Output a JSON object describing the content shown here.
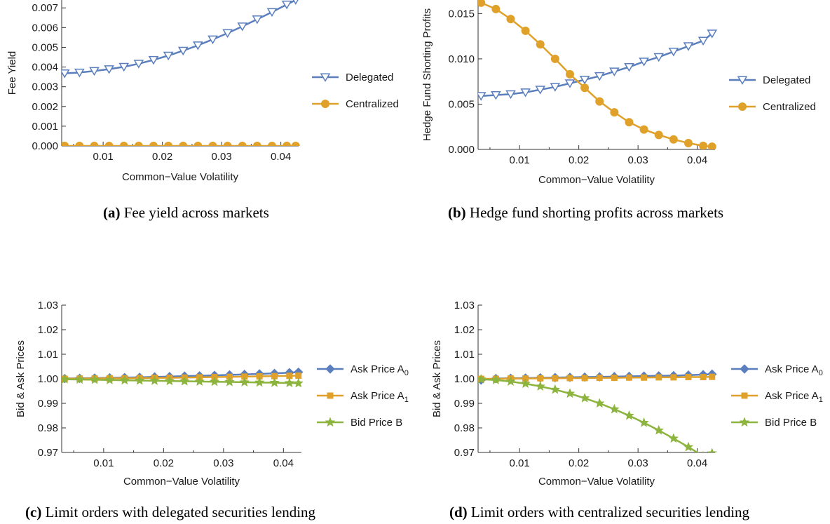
{
  "colors": {
    "delegated": "#5b7fbd",
    "centralized": "#e0a12a",
    "green": "#8cb43e",
    "axis": "#333333"
  },
  "chart_data": [
    {
      "id": "a",
      "type": "line",
      "caption_label": "(a)",
      "caption_text": " Fee yield across markets",
      "xlabel": "Common−Value Volatility",
      "ylabel": "Fee Yield",
      "xlim": [
        0.003,
        0.043
      ],
      "ylim": [
        0.0,
        0.0074
      ],
      "x_ticks": [
        0.01,
        0.02,
        0.03,
        0.04
      ],
      "x_tick_labels": [
        "0.01",
        "0.02",
        "0.03",
        "0.04"
      ],
      "y_ticks": [
        0,
        0.001,
        0.002,
        0.003,
        0.004,
        0.005,
        0.006,
        0.007
      ],
      "y_tick_labels": [
        "0.000",
        "0.001",
        "0.002",
        "0.003",
        "0.004",
        "0.005",
        "0.006",
        "0.007"
      ],
      "x": [
        0.0035,
        0.006,
        0.0085,
        0.011,
        0.0135,
        0.016,
        0.0185,
        0.021,
        0.0235,
        0.026,
        0.0285,
        0.031,
        0.0335,
        0.036,
        0.0385,
        0.041,
        0.0425
      ],
      "series": [
        {
          "name": "Delegated",
          "marker": "triangle-down",
          "color_key": "delegated",
          "values": [
            0.00368,
            0.00372,
            0.0038,
            0.00389,
            0.00401,
            0.00417,
            0.00436,
            0.00458,
            0.00483,
            0.0051,
            0.0054,
            0.00572,
            0.00606,
            0.00642,
            0.00679,
            0.00717,
            0.0074
          ]
        },
        {
          "name": "Centralized",
          "marker": "circle",
          "color_key": "centralized",
          "values": [
            0.0,
            0.0,
            0.0,
            0.0,
            0.0,
            0.0,
            0.0,
            0.0,
            0.0,
            0.0,
            0.0,
            0.0,
            0.0,
            0.0,
            0.0,
            0.0,
            0.0
          ]
        }
      ]
    },
    {
      "id": "b",
      "type": "line",
      "caption_label": "(b)",
      "caption_text": " Hedge fund shorting profits across markets",
      "xlabel": "Common−Value Volatility",
      "ylabel": "Hedge Fund Shorting Profits",
      "xlim": [
        0.003,
        0.043
      ],
      "ylim": [
        0.0,
        0.0165
      ],
      "x_ticks": [
        0.01,
        0.02,
        0.03,
        0.04
      ],
      "x_tick_labels": [
        "0.01",
        "0.02",
        "0.03",
        "0.04"
      ],
      "y_ticks": [
        0,
        0.005,
        0.01,
        0.015
      ],
      "y_tick_labels": [
        "0.000",
        "0.005",
        "0.010",
        "0.015"
      ],
      "x": [
        0.0035,
        0.006,
        0.0085,
        0.011,
        0.0135,
        0.016,
        0.0185,
        0.021,
        0.0235,
        0.026,
        0.0285,
        0.031,
        0.0335,
        0.036,
        0.0385,
        0.041,
        0.0425
      ],
      "series": [
        {
          "name": "Delegated",
          "marker": "triangle-down",
          "color_key": "delegated",
          "values": [
            0.0059,
            0.006,
            0.0061,
            0.0063,
            0.0066,
            0.0069,
            0.0073,
            0.0077,
            0.0081,
            0.0086,
            0.0091,
            0.0097,
            0.0102,
            0.0108,
            0.0114,
            0.012,
            0.0128
          ]
        },
        {
          "name": "Centralized",
          "marker": "circle",
          "color_key": "centralized",
          "values": [
            0.0162,
            0.0155,
            0.0144,
            0.0131,
            0.0116,
            0.01,
            0.0083,
            0.0068,
            0.0053,
            0.0041,
            0.003,
            0.0022,
            0.0016,
            0.0011,
            0.0007,
            0.0004,
            0.0003
          ]
        }
      ]
    },
    {
      "id": "c",
      "type": "line",
      "caption_label": "(c)",
      "caption_text": " Limit orders with delegated securities lending",
      "xlabel": "Common−Value Volatility",
      "ylabel": "Bid & Ask Prices",
      "xlim": [
        0.003,
        0.043
      ],
      "ylim": [
        0.97,
        1.03
      ],
      "x_ticks": [
        0.01,
        0.02,
        0.03,
        0.04
      ],
      "x_tick_labels": [
        "0.01",
        "0.02",
        "0.03",
        "0.04"
      ],
      "y_ticks": [
        0.97,
        0.98,
        0.99,
        1.0,
        1.01,
        1.02,
        1.03
      ],
      "y_tick_labels": [
        "0.97",
        "0.98",
        "0.99",
        "1.00",
        "1.01",
        "1.02",
        "1.03"
      ],
      "x": [
        0.0035,
        0.006,
        0.0085,
        0.011,
        0.0135,
        0.016,
        0.0185,
        0.021,
        0.0235,
        0.026,
        0.0285,
        0.031,
        0.0335,
        0.036,
        0.0385,
        0.041,
        0.0425
      ],
      "series": [
        {
          "name": "Ask Price A",
          "sub": "0",
          "marker": "diamond",
          "color_key": "delegated",
          "values": [
            1.0001,
            1.0002,
            1.0003,
            1.0004,
            1.0005,
            1.0006,
            1.0008,
            1.0009,
            1.0011,
            1.0012,
            1.0014,
            1.0016,
            1.0018,
            1.002,
            1.0022,
            1.0025,
            1.0027
          ]
        },
        {
          "name": "Ask Price A",
          "sub": "1",
          "marker": "square",
          "color_key": "centralized",
          "values": [
            1.0,
            1.0001,
            1.0001,
            1.0002,
            1.0002,
            1.0003,
            1.0004,
            1.0004,
            1.0005,
            1.0006,
            1.0007,
            1.0008,
            1.0009,
            1.001,
            1.0011,
            1.0012,
            1.0013
          ]
        },
        {
          "name": "Bid Price B",
          "marker": "star",
          "color_key": "green",
          "values": [
            0.9998,
            0.9997,
            0.9996,
            0.9995,
            0.9994,
            0.9993,
            0.9992,
            0.9991,
            0.999,
            0.9989,
            0.9988,
            0.9987,
            0.9986,
            0.9985,
            0.9984,
            0.9983,
            0.9982
          ]
        }
      ]
    },
    {
      "id": "d",
      "type": "line",
      "caption_label": "(d)",
      "caption_text": " Limit orders with centralized securities lending",
      "xlabel": "Common−Value Volatility",
      "ylabel": "Bid & Ask Prices",
      "xlim": [
        0.003,
        0.043
      ],
      "ylim": [
        0.97,
        1.03
      ],
      "x_ticks": [
        0.01,
        0.02,
        0.03,
        0.04
      ],
      "x_tick_labels": [
        "0.01",
        "0.02",
        "0.03",
        "0.04"
      ],
      "y_ticks": [
        0.97,
        0.98,
        0.99,
        1.0,
        1.01,
        1.02,
        1.03
      ],
      "y_tick_labels": [
        "0.97",
        "0.98",
        "0.99",
        "1.00",
        "1.01",
        "1.02",
        "1.03"
      ],
      "x": [
        0.0035,
        0.006,
        0.0085,
        0.011,
        0.0135,
        0.016,
        0.0185,
        0.021,
        0.0235,
        0.026,
        0.0285,
        0.031,
        0.0335,
        0.036,
        0.0385,
        0.041,
        0.0425
      ],
      "series": [
        {
          "name": "Ask Price A",
          "sub": "0",
          "marker": "diamond",
          "color_key": "delegated",
          "values": [
            0.9995,
            1.0001,
            1.0002,
            1.0003,
            1.0004,
            1.0005,
            1.0006,
            1.0007,
            1.0008,
            1.0009,
            1.001,
            1.0011,
            1.0012,
            1.0013,
            1.0015,
            1.0017,
            1.0019
          ]
        },
        {
          "name": "Ask Price A",
          "sub": "1",
          "marker": "square",
          "color_key": "centralized",
          "values": [
            1.0,
            1.0,
            1.0001,
            1.0001,
            1.0002,
            1.0002,
            1.0003,
            1.0003,
            1.0004,
            1.0004,
            1.0005,
            1.0005,
            1.0006,
            1.0006,
            1.0007,
            1.0007,
            1.0008
          ]
        },
        {
          "name": "Bid Price B",
          "marker": "star",
          "color_key": "green",
          "values": [
            0.9998,
            0.9995,
            0.9989,
            0.998,
            0.9969,
            0.9956,
            0.994,
            0.9921,
            0.99,
            0.9876,
            0.985,
            0.9821,
            0.979,
            0.9757,
            0.9722,
            0.9685,
            0.9697
          ]
        }
      ]
    }
  ]
}
